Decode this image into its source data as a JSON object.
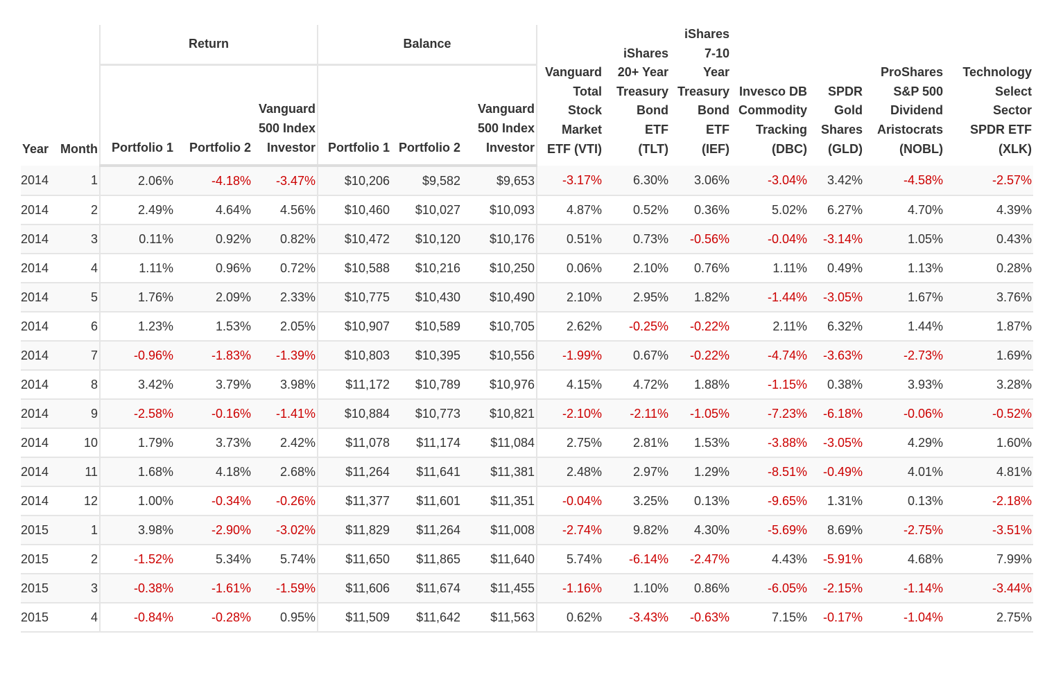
{
  "groups": {
    "return": "Return",
    "balance": "Balance"
  },
  "columns": {
    "year": "Year",
    "month": "Month",
    "return_p1": "Portfolio 1",
    "return_p2": "Portfolio 2",
    "return_v500": [
      "Vanguard",
      "500 Index",
      "Investor"
    ],
    "balance_p1": "Portfolio 1",
    "balance_p2": "Portfolio 2",
    "balance_v500": [
      "Vanguard",
      "500 Index",
      "Investor"
    ],
    "vti": [
      "Vanguard",
      "Total",
      "Stock",
      "Market",
      "ETF (VTI)"
    ],
    "tlt": [
      "iShares",
      "20+ Year",
      "Treasury",
      "Bond",
      "ETF",
      "(TLT)"
    ],
    "ief": [
      "iShares",
      "7-10",
      "Year",
      "Treasury",
      "Bond",
      "ETF",
      "(IEF)"
    ],
    "dbc": [
      "Invesco DB",
      "Commodity",
      "Tracking",
      "(DBC)"
    ],
    "gld": [
      "SPDR",
      "Gold",
      "Shares",
      "(GLD)"
    ],
    "nobl": [
      "ProShares",
      "S&P 500",
      "Dividend",
      "Aristocrats",
      "(NOBL)"
    ],
    "xlk": [
      "Technology",
      "Select",
      "Sector",
      "SPDR ETF",
      "(XLK)"
    ]
  },
  "colors": {
    "negative": "#cc0000",
    "text": "#333333",
    "stripe": "#f9f9f9",
    "border": "#e5e5e5"
  },
  "rows": [
    [
      "2014",
      "1",
      "2.06%",
      "-4.18%",
      "-3.47%",
      "$10,206",
      "$9,582",
      "$9,653",
      "-3.17%",
      "6.30%",
      "3.06%",
      "-3.04%",
      "3.42%",
      "-4.58%",
      "-2.57%"
    ],
    [
      "2014",
      "2",
      "2.49%",
      "4.64%",
      "4.56%",
      "$10,460",
      "$10,027",
      "$10,093",
      "4.87%",
      "0.52%",
      "0.36%",
      "5.02%",
      "6.27%",
      "4.70%",
      "4.39%"
    ],
    [
      "2014",
      "3",
      "0.11%",
      "0.92%",
      "0.82%",
      "$10,472",
      "$10,120",
      "$10,176",
      "0.51%",
      "0.73%",
      "-0.56%",
      "-0.04%",
      "-3.14%",
      "1.05%",
      "0.43%"
    ],
    [
      "2014",
      "4",
      "1.11%",
      "0.96%",
      "0.72%",
      "$10,588",
      "$10,216",
      "$10,250",
      "0.06%",
      "2.10%",
      "0.76%",
      "1.11%",
      "0.49%",
      "1.13%",
      "0.28%"
    ],
    [
      "2014",
      "5",
      "1.76%",
      "2.09%",
      "2.33%",
      "$10,775",
      "$10,430",
      "$10,490",
      "2.10%",
      "2.95%",
      "1.82%",
      "-1.44%",
      "-3.05%",
      "1.67%",
      "3.76%"
    ],
    [
      "2014",
      "6",
      "1.23%",
      "1.53%",
      "2.05%",
      "$10,907",
      "$10,589",
      "$10,705",
      "2.62%",
      "-0.25%",
      "-0.22%",
      "2.11%",
      "6.32%",
      "1.44%",
      "1.87%"
    ],
    [
      "2014",
      "7",
      "-0.96%",
      "-1.83%",
      "-1.39%",
      "$10,803",
      "$10,395",
      "$10,556",
      "-1.99%",
      "0.67%",
      "-0.22%",
      "-4.74%",
      "-3.63%",
      "-2.73%",
      "1.69%"
    ],
    [
      "2014",
      "8",
      "3.42%",
      "3.79%",
      "3.98%",
      "$11,172",
      "$10,789",
      "$10,976",
      "4.15%",
      "4.72%",
      "1.88%",
      "-1.15%",
      "0.38%",
      "3.93%",
      "3.28%"
    ],
    [
      "2014",
      "9",
      "-2.58%",
      "-0.16%",
      "-1.41%",
      "$10,884",
      "$10,773",
      "$10,821",
      "-2.10%",
      "-2.11%",
      "-1.05%",
      "-7.23%",
      "-6.18%",
      "-0.06%",
      "-0.52%"
    ],
    [
      "2014",
      "10",
      "1.79%",
      "3.73%",
      "2.42%",
      "$11,078",
      "$11,174",
      "$11,084",
      "2.75%",
      "2.81%",
      "1.53%",
      "-3.88%",
      "-3.05%",
      "4.29%",
      "1.60%"
    ],
    [
      "2014",
      "11",
      "1.68%",
      "4.18%",
      "2.68%",
      "$11,264",
      "$11,641",
      "$11,381",
      "2.48%",
      "2.97%",
      "1.29%",
      "-8.51%",
      "-0.49%",
      "4.01%",
      "4.81%"
    ],
    [
      "2014",
      "12",
      "1.00%",
      "-0.34%",
      "-0.26%",
      "$11,377",
      "$11,601",
      "$11,351",
      "-0.04%",
      "3.25%",
      "0.13%",
      "-9.65%",
      "1.31%",
      "0.13%",
      "-2.18%"
    ],
    [
      "2015",
      "1",
      "3.98%",
      "-2.90%",
      "-3.02%",
      "$11,829",
      "$11,264",
      "$11,008",
      "-2.74%",
      "9.82%",
      "4.30%",
      "-5.69%",
      "8.69%",
      "-2.75%",
      "-3.51%"
    ],
    [
      "2015",
      "2",
      "-1.52%",
      "5.34%",
      "5.74%",
      "$11,650",
      "$11,865",
      "$11,640",
      "5.74%",
      "-6.14%",
      "-2.47%",
      "4.43%",
      "-5.91%",
      "4.68%",
      "7.99%"
    ],
    [
      "2015",
      "3",
      "-0.38%",
      "-1.61%",
      "-1.59%",
      "$11,606",
      "$11,674",
      "$11,455",
      "-1.16%",
      "1.10%",
      "0.86%",
      "-6.05%",
      "-2.15%",
      "-1.14%",
      "-3.44%"
    ],
    [
      "2015",
      "4",
      "-0.84%",
      "-0.28%",
      "0.95%",
      "$11,509",
      "$11,642",
      "$11,563",
      "0.62%",
      "-3.43%",
      "-0.63%",
      "7.15%",
      "-0.17%",
      "-1.04%",
      "2.75%"
    ]
  ]
}
